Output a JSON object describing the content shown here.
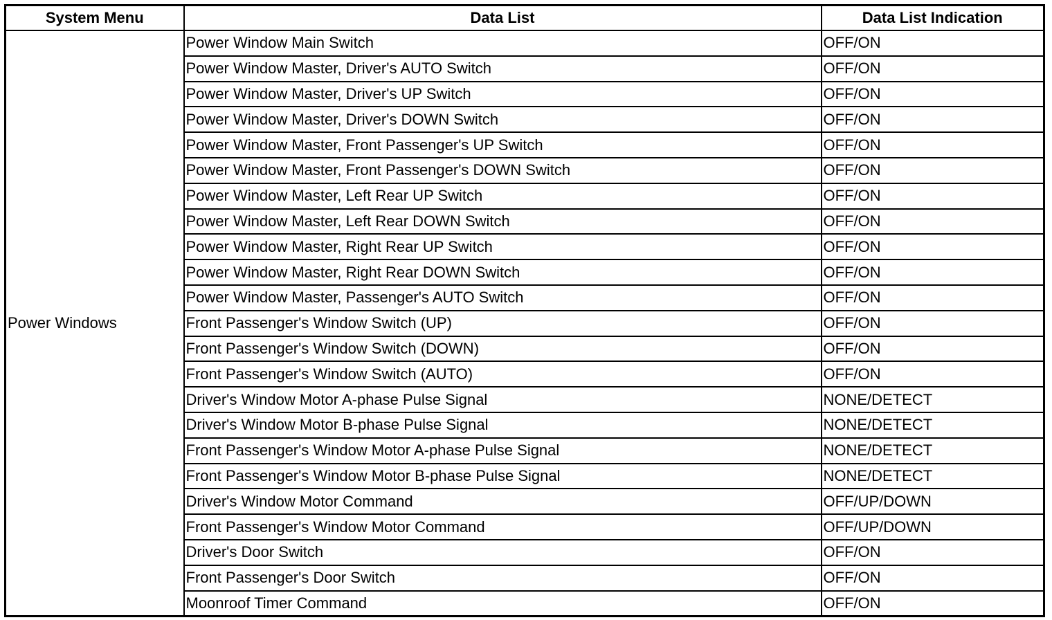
{
  "table": {
    "headers": [
      "System Menu",
      "Data List",
      "Data List Indication"
    ],
    "system_menu": "Power Windows",
    "rows": [
      {
        "item": "Power Window Main Switch",
        "indication": "OFF/ON"
      },
      {
        "item": "Power Window Master, Driver's AUTO Switch",
        "indication": "OFF/ON"
      },
      {
        "item": "Power Window Master, Driver's UP Switch",
        "indication": "OFF/ON"
      },
      {
        "item": "Power Window Master, Driver's DOWN Switch",
        "indication": "OFF/ON"
      },
      {
        "item": "Power Window Master, Front Passenger's UP Switch",
        "indication": "OFF/ON"
      },
      {
        "item": "Power Window Master, Front Passenger's DOWN Switch",
        "indication": "OFF/ON"
      },
      {
        "item": "Power Window Master, Left Rear UP Switch",
        "indication": "OFF/ON"
      },
      {
        "item": "Power Window Master, Left Rear DOWN Switch",
        "indication": "OFF/ON"
      },
      {
        "item": "Power Window Master, Right Rear UP Switch",
        "indication": "OFF/ON"
      },
      {
        "item": "Power Window Master, Right Rear DOWN Switch",
        "indication": "OFF/ON"
      },
      {
        "item": "Power Window Master, Passenger's AUTO Switch",
        "indication": "OFF/ON"
      },
      {
        "item": "Front Passenger's Window Switch (UP)",
        "indication": "OFF/ON"
      },
      {
        "item": "Front Passenger's Window Switch (DOWN)",
        "indication": "OFF/ON"
      },
      {
        "item": "Front Passenger's Window Switch (AUTO)",
        "indication": "OFF/ON"
      },
      {
        "item": "Driver's Window Motor A-phase Pulse Signal",
        "indication": "NONE/DETECT"
      },
      {
        "item": "Driver's Window Motor B-phase Pulse Signal",
        "indication": "NONE/DETECT"
      },
      {
        "item": "Front Passenger's Window Motor A-phase Pulse Signal",
        "indication": "NONE/DETECT"
      },
      {
        "item": "Front Passenger's Window Motor B-phase Pulse Signal",
        "indication": "NONE/DETECT"
      },
      {
        "item": "Driver's Window Motor Command",
        "indication": "OFF/UP/DOWN"
      },
      {
        "item": "Front Passenger's Window Motor Command",
        "indication": "OFF/UP/DOWN"
      },
      {
        "item": "Driver's Door Switch",
        "indication": "OFF/ON"
      },
      {
        "item": "Front Passenger's Door Switch",
        "indication": "OFF/ON"
      },
      {
        "item": "Moonroof Timer Command",
        "indication": "OFF/ON"
      }
    ]
  }
}
